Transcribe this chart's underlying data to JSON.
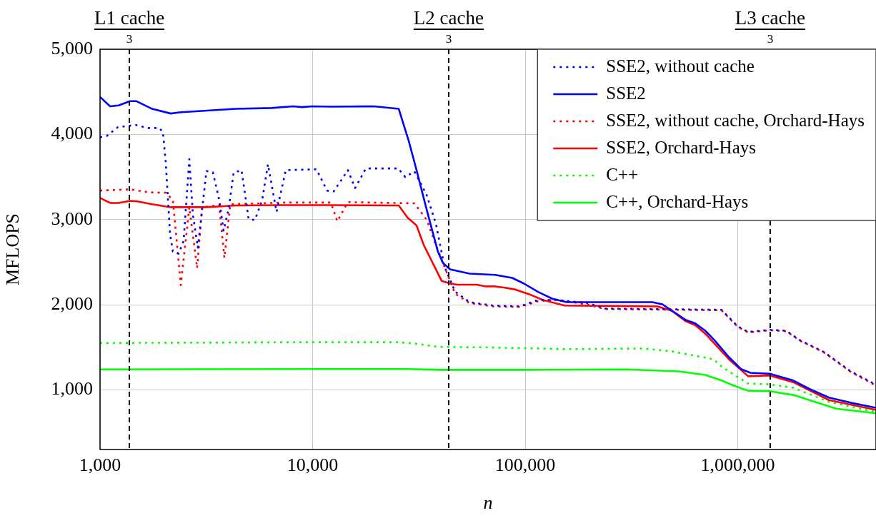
{
  "chart_data": {
    "type": "line",
    "xlabel": "n",
    "ylabel": "MFLOPS",
    "log": "x",
    "grid": true,
    "legend": "top right",
    "marker": "none",
    "xlim": [
      1000,
      4467000
    ],
    "xticks": [
      {
        "value": 1000,
        "label": "1,000"
      },
      {
        "value": 10000,
        "label": "10,000"
      },
      {
        "value": 100000,
        "label": "100,000"
      },
      {
        "value": 1000000,
        "label": "1,000,000"
      }
    ],
    "ylim": [
      300,
      5000
    ],
    "yticks": [
      {
        "value": 1000,
        "label": "1,000"
      },
      {
        "value": 2000,
        "label": "2,000"
      },
      {
        "value": 3000,
        "label": "3,000"
      },
      {
        "value": 4000,
        "label": "4,000"
      },
      {
        "value": 5000,
        "label": "5,000"
      }
    ],
    "ref_lines": [
      {
        "axis": "x",
        "value": 1374,
        "label": "L1 cache 3",
        "color": "#000000",
        "line_style": "dashed"
      },
      {
        "axis": "x",
        "value": 43650,
        "label": "L2 cache 3",
        "color": "#000000",
        "line_style": "dashed"
      },
      {
        "axis": "x",
        "value": 1420000,
        "label": "L3 cache 3",
        "color": "#000000",
        "line_style": "dashed"
      }
    ],
    "series": [
      {
        "name": "SSE2, without cache",
        "color": "#0000ff",
        "line_style": "dotted",
        "x": [
          1000,
          1080,
          1213,
          1473,
          1679,
          1901,
          1976,
          2037,
          2134,
          2201,
          2343,
          2473,
          2630,
          2733,
          2885,
          3022,
          3167,
          3395,
          3637,
          3812,
          4024,
          4250,
          4629,
          5001,
          5355,
          5791,
          6163,
          6766,
          7478,
          10420,
          11700,
          12560,
          14650,
          15840,
          17800,
          25240,
          27280,
          30130,
          34360,
          38030,
          41650,
          46780,
          54690,
          70780,
          94240,
          115000,
          141000,
          196600,
          237000,
          838000,
          1000000,
          1119000,
          1413000,
          1687000,
          1970000,
          2542000,
          3383000,
          4467000
        ],
        "values": [
          3965,
          3985,
          4085,
          4110,
          4075,
          4075,
          4025,
          3675,
          2835,
          2625,
          2600,
          2750,
          3710,
          3060,
          2670,
          3120,
          3570,
          3555,
          3230,
          2870,
          3120,
          3550,
          3580,
          3005,
          2995,
          3230,
          3650,
          3090,
          3580,
          3590,
          3340,
          3330,
          3580,
          3370,
          3600,
          3600,
          3500,
          3565,
          3290,
          2950,
          2450,
          2155,
          2030,
          1990,
          1980,
          2055,
          2055,
          2020,
          1955,
          1940,
          1745,
          1680,
          1705,
          1695,
          1580,
          1445,
          1220,
          1060
        ]
      },
      {
        "name": "SSE2",
        "color": "#0000ff",
        "line_style": "solid",
        "x": [
          1000,
          1115,
          1223,
          1384,
          1484,
          1758,
          2152,
          2398,
          4351,
          6412,
          8088,
          8935,
          9954,
          12180,
          19370,
          25410,
          28310,
          30830,
          34360,
          38880,
          41030,
          44340,
          54690,
          72270,
          86900,
          98400,
          115000,
          134300,
          156700,
          396600,
          441800,
          570000,
          631000,
          703000,
          778000,
          908000,
          1035000,
          1146000,
          1413000,
          1824000,
          2178000,
          2684000,
          3383000,
          4467000
        ],
        "values": [
          4440,
          4330,
          4340,
          4390,
          4390,
          4300,
          4245,
          4260,
          4300,
          4310,
          4330,
          4320,
          4330,
          4325,
          4330,
          4300,
          3925,
          3580,
          3120,
          2620,
          2490,
          2415,
          2365,
          2350,
          2315,
          2250,
          2150,
          2070,
          2030,
          2030,
          2005,
          1820,
          1780,
          1695,
          1580,
          1385,
          1245,
          1200,
          1190,
          1110,
          1010,
          910,
          850,
          790
        ]
      },
      {
        "name": "SSE2, without cache, Orchard-Hays",
        "color": "#ff0000",
        "line_style": "dotted",
        "x": [
          1000,
          1384,
          1679,
          2037,
          2201,
          2398,
          2630,
          2862,
          3022,
          3637,
          3844,
          4100,
          7478,
          12180,
          13060,
          14650,
          30130,
          34360,
          38030,
          41650,
          46780,
          54690,
          70780,
          94240,
          115000,
          141000,
          196600,
          237000,
          838000,
          1000000,
          1119000,
          1413000,
          1687000,
          1970000,
          2542000,
          3383000,
          4467000
        ],
        "values": [
          3340,
          3355,
          3320,
          3315,
          3230,
          2230,
          3145,
          2430,
          3145,
          3170,
          2550,
          3180,
          3200,
          3200,
          2980,
          3205,
          3190,
          3000,
          2700,
          2450,
          2130,
          2020,
          1980,
          1975,
          2040,
          2060,
          2000,
          1950,
          1935,
          1740,
          1675,
          1700,
          1690,
          1575,
          1440,
          1215,
          1050
        ]
      },
      {
        "name": "SSE2, Orchard-Hays",
        "color": "#ff0000",
        "line_style": "solid",
        "x": [
          1000,
          1115,
          1223,
          1384,
          1484,
          1758,
          2152,
          3167,
          4351,
          7000,
          12180,
          25410,
          28000,
          30830,
          33340,
          40450,
          44340,
          47940,
          59070,
          65370,
          72270,
          80500,
          89100,
          103900,
          121400,
          153100,
          418800,
          488400,
          570000,
          631000,
          703000,
          908000,
          1119000,
          1413000,
          1824000,
          2684000,
          4467000
        ],
        "values": [
          3255,
          3195,
          3195,
          3220,
          3215,
          3180,
          3145,
          3145,
          3165,
          3170,
          3170,
          3165,
          3020,
          2930,
          2700,
          2280,
          2250,
          2235,
          2235,
          2215,
          2215,
          2200,
          2180,
          2125,
          2055,
          1990,
          1980,
          1930,
          1805,
          1760,
          1660,
          1360,
          1160,
          1170,
          1090,
          880,
          765
        ]
      },
      {
        "name": "C++",
        "color": "#00ff00",
        "line_style": "dotted",
        "x": [
          1000,
          3000,
          10000,
          25000,
          30130,
          38880,
          60000,
          100000,
          150000,
          358000,
          488000,
          770000,
          838000,
          1000000,
          1119000,
          1413000,
          1824000,
          2684000,
          4467000
        ],
        "values": [
          1550,
          1555,
          1560,
          1560,
          1545,
          1505,
          1500,
          1490,
          1478,
          1486,
          1453,
          1360,
          1275,
          1150,
          1075,
          1065,
          1025,
          860,
          740
        ]
      },
      {
        "name": "C++, Orchard-Hays",
        "color": "#00ff00",
        "line_style": "solid",
        "x": [
          1000,
          10000,
          28000,
          40000,
          100000,
          300000,
          528000,
          703000,
          838000,
          959000,
          1119000,
          1413000,
          1824000,
          2897000,
          4467000
        ],
        "values": [
          1240,
          1245,
          1245,
          1235,
          1235,
          1240,
          1218,
          1175,
          1110,
          1050,
          990,
          985,
          940,
          780,
          725
        ]
      }
    ]
  }
}
